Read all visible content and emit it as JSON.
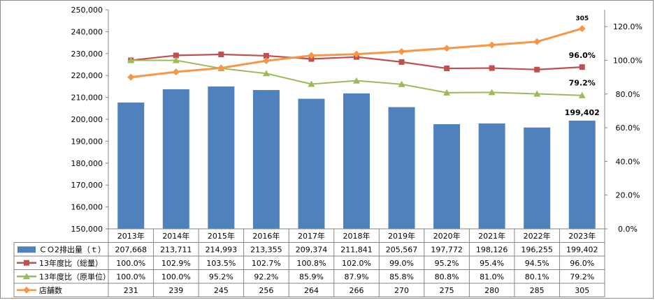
{
  "chart_data": {
    "type": "bar",
    "categories": [
      "2013年",
      "2014年",
      "2015年",
      "2016年",
      "2017年",
      "2018年",
      "2019年",
      "2020年",
      "2021年",
      "2022年",
      "2023年"
    ],
    "y_left": {
      "ylim": [
        150000,
        250000
      ],
      "ticks": [
        "150,000",
        "160,000",
        "170,000",
        "180,000",
        "190,000",
        "200,000",
        "210,000",
        "220,000",
        "230,000",
        "240,000",
        "250,000"
      ]
    },
    "y_right": {
      "ylim": [
        0,
        130
      ],
      "ticks": [
        "0.0%",
        "20.0%",
        "40.0%",
        "60.0%",
        "80.0%",
        "100.0%",
        "120.0%"
      ]
    },
    "grid": false,
    "legend": "data-table-below",
    "series": [
      {
        "name": "ＣＯ2排出量（ｔ）",
        "type": "bar",
        "axis": "left",
        "color": "#4f81bd",
        "values": [
          207668,
          213711,
          214993,
          213355,
          209374,
          211841,
          205567,
          197772,
          198126,
          196255,
          199402
        ],
        "labels": [
          "207,668",
          "213,711",
          "214,993",
          "213,355",
          "209,374",
          "211,841",
          "205,567",
          "197,772",
          "198,126",
          "196,255",
          "199,402"
        ]
      },
      {
        "name": "13年度比（総量）",
        "type": "line",
        "axis": "right",
        "color": "#c0504d",
        "marker": "square",
        "values": [
          100.0,
          102.9,
          103.5,
          102.7,
          100.8,
          102.0,
          99.0,
          95.2,
          95.4,
          94.5,
          96.0
        ],
        "labels": [
          "100.0%",
          "102.9%",
          "103.5%",
          "102.7%",
          "100.8%",
          "102.0%",
          "99.0%",
          "95.2%",
          "95.4%",
          "94.5%",
          "96.0%"
        ]
      },
      {
        "name": "13年度比（原単位）",
        "type": "line",
        "axis": "right",
        "color": "#9bbb59",
        "marker": "triangle",
        "values": [
          100.0,
          100.0,
          95.2,
          92.2,
          85.9,
          87.9,
          85.8,
          80.8,
          81.0,
          80.1,
          79.2
        ],
        "labels": [
          "100.0%",
          "100.0%",
          "95.2%",
          "92.2%",
          "85.9%",
          "87.9%",
          "85.8%",
          "80.8%",
          "81.0%",
          "80.1%",
          "79.2%"
        ]
      },
      {
        "name": "店舗数",
        "type": "line",
        "axis": "right-scaled",
        "color": "#f79646",
        "marker": "diamond",
        "values": [
          231,
          239,
          245,
          256,
          264,
          266,
          270,
          275,
          280,
          285,
          305
        ],
        "labels": [
          "231",
          "239",
          "245",
          "256",
          "264",
          "266",
          "270",
          "275",
          "280",
          "285",
          "305"
        ]
      }
    ],
    "annotations": [
      "199,402",
      "96.0%",
      "79.2%",
      "305"
    ]
  }
}
